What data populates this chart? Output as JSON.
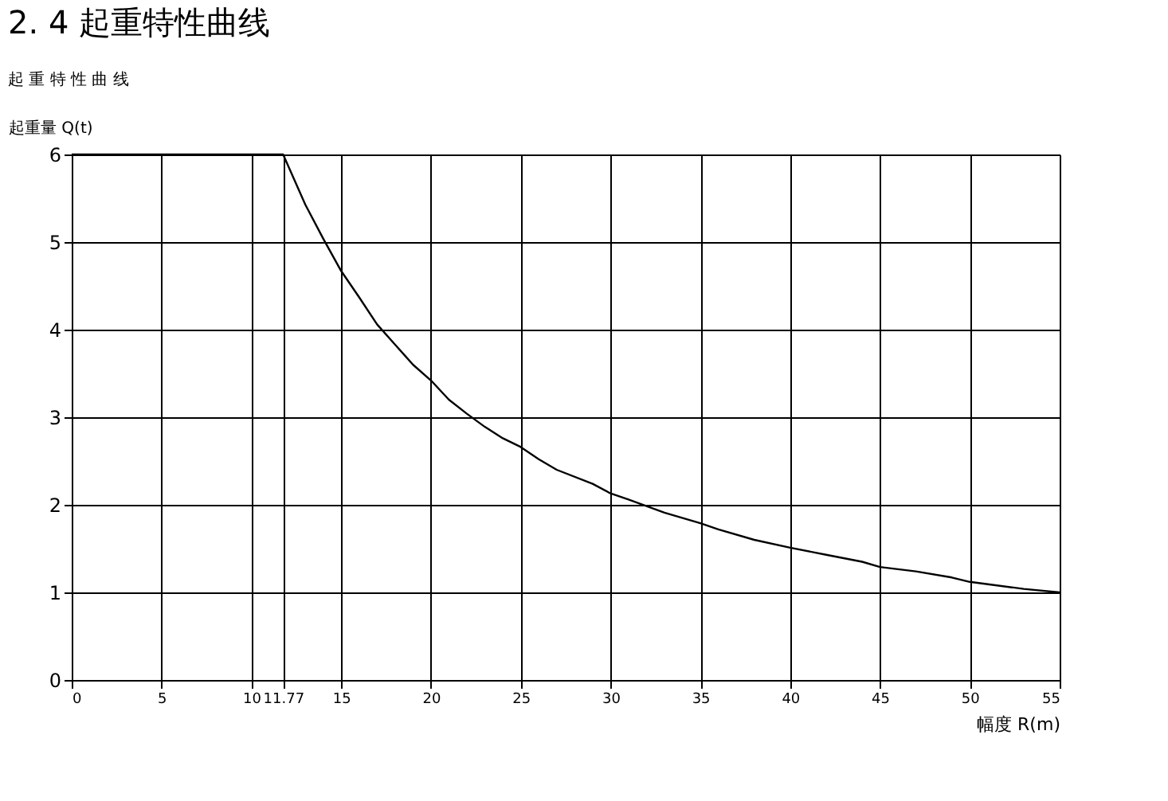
{
  "chart_data": {
    "type": "line",
    "title": "2. 4 起重特性曲线",
    "subtitle": "起 重 特 性 曲 线",
    "xlabel": "幅度 R(m)",
    "ylabel": "起重量 Q(t)",
    "x": [
      0,
      11.77,
      13,
      14,
      15,
      16,
      17,
      18,
      19,
      20,
      21,
      22,
      23,
      24,
      25,
      26,
      27,
      29,
      30,
      31,
      33,
      35,
      36,
      38,
      40,
      42,
      44,
      45,
      47,
      49,
      50,
      53,
      55
    ],
    "series": [
      {
        "color": "#000000",
        "values": [
          6,
          6,
          5.43,
          5.04,
          4.67,
          4.37,
          4.06,
          3.83,
          3.6,
          3.42,
          3.2,
          3.04,
          2.89,
          2.76,
          2.66,
          2.52,
          2.4,
          2.24,
          2.13,
          2.06,
          1.91,
          1.79,
          1.72,
          1.6,
          1.51,
          1.43,
          1.35,
          1.29,
          1.24,
          1.17,
          1.12,
          1.04,
          1
        ]
      }
    ],
    "xlim": [
      0,
      55
    ],
    "xticks": [
      0,
      5,
      10,
      11.77,
      15,
      20,
      25,
      30,
      35,
      40,
      45,
      50,
      55
    ],
    "ylim": [
      0,
      6
    ],
    "yticks": [
      0,
      1,
      2,
      3,
      4,
      5,
      6
    ],
    "grid": true,
    "legend": false,
    "marker": "none",
    "line_style": "solid"
  }
}
